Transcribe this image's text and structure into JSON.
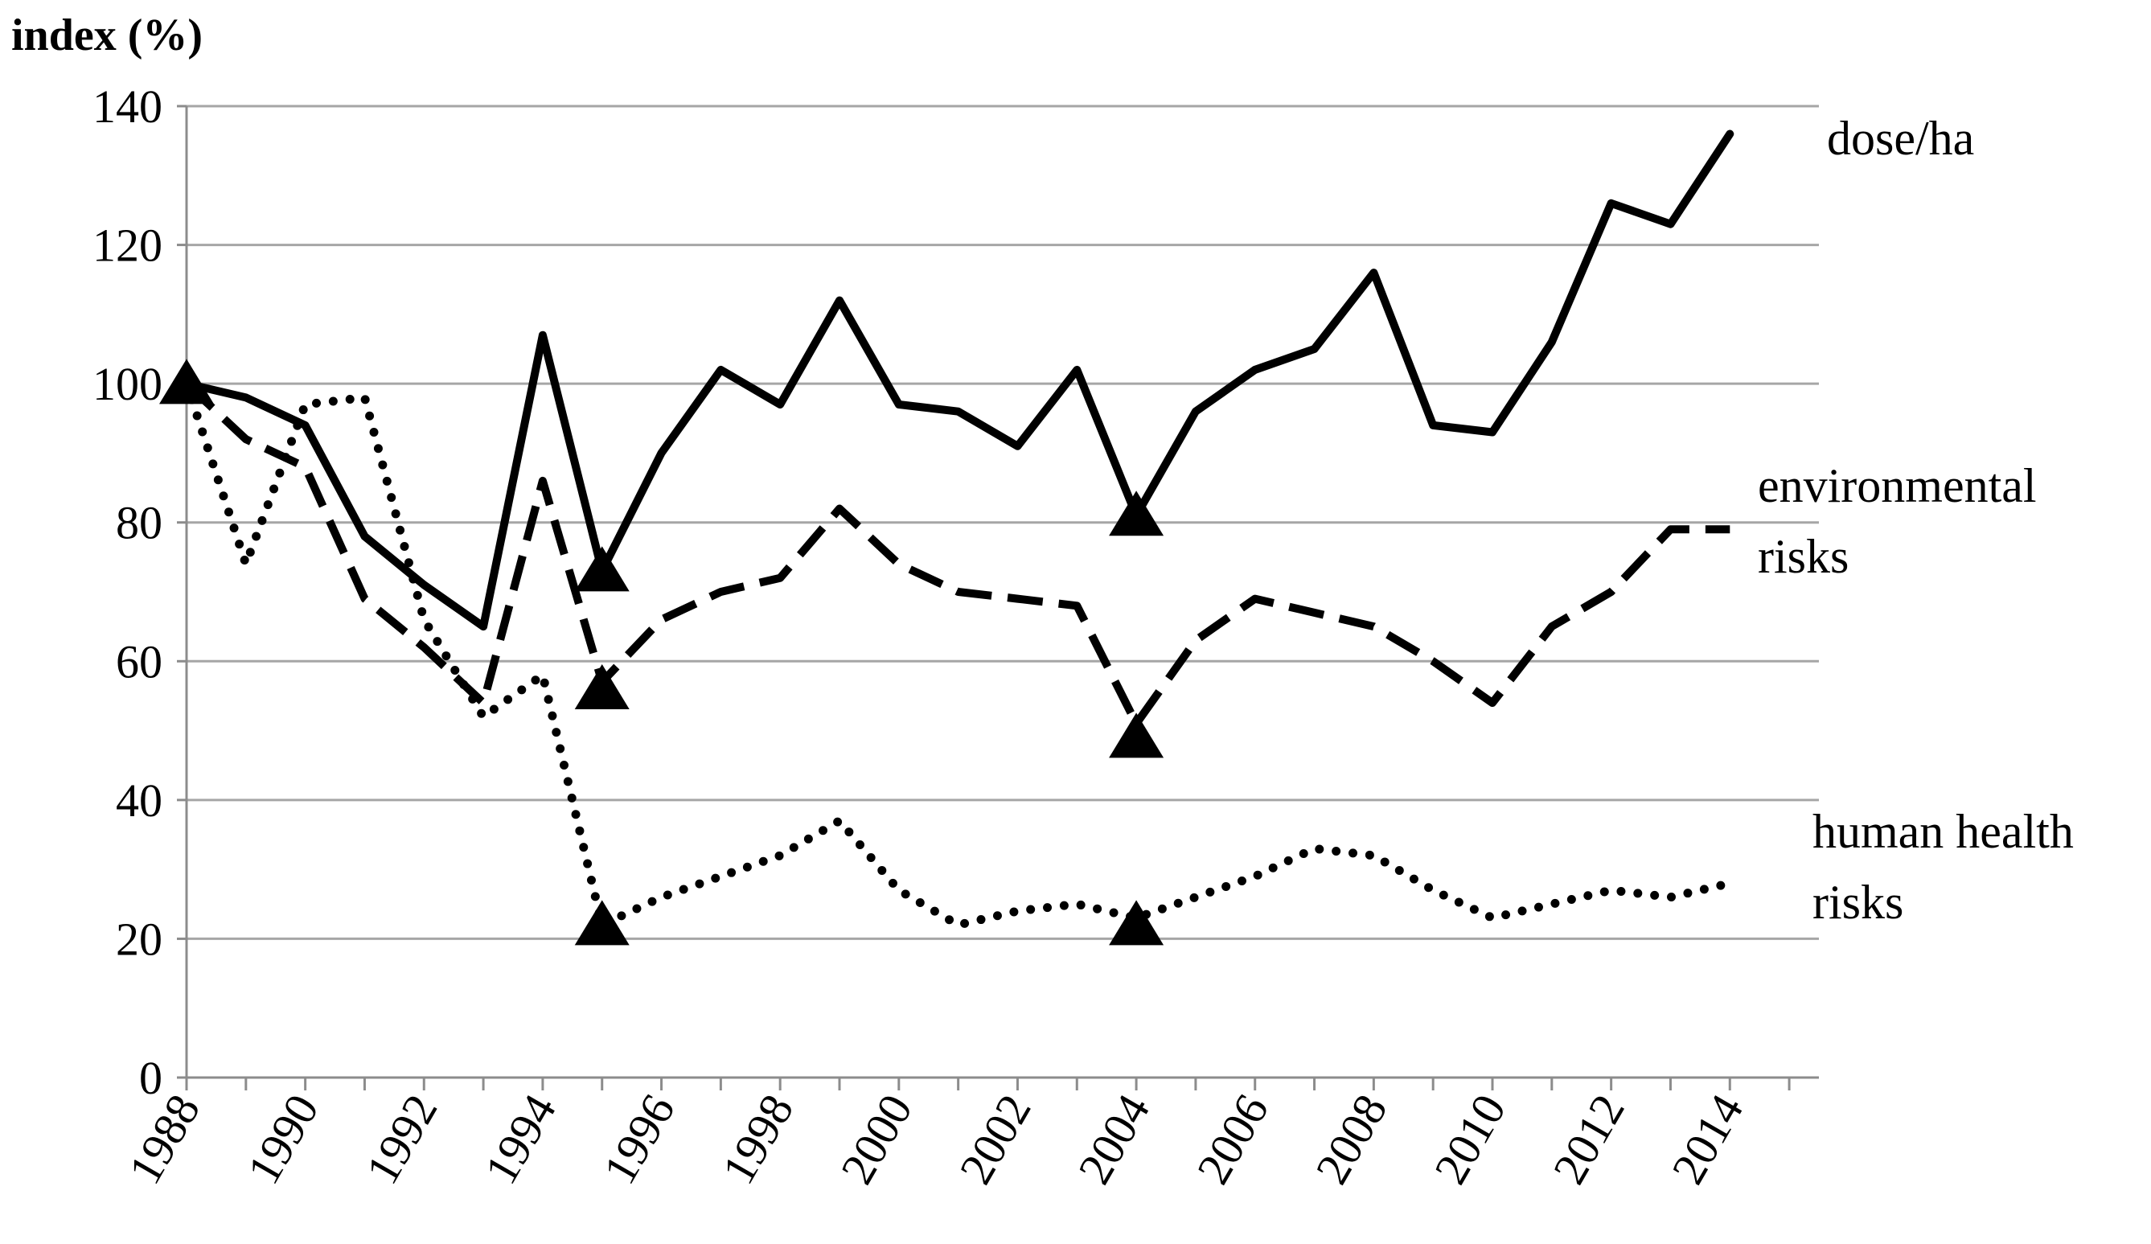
{
  "chart_data": {
    "type": "line",
    "ylabel": "index (%)",
    "xlabel": "",
    "ylim": [
      0,
      140
    ],
    "yticks": [
      "0",
      "20",
      "40",
      "60",
      "80",
      "100",
      "120",
      "140"
    ],
    "xlim": [
      1988,
      2015.5
    ],
    "x_tick_labels": [
      "1988",
      "1990",
      "1992",
      "1994",
      "1996",
      "1998",
      "2000",
      "2002",
      "2004",
      "2006",
      "2008",
      "2010",
      "2012",
      "2014"
    ],
    "grid": "horizontal",
    "series": [
      {
        "name": "dose/ha",
        "style": "solid",
        "x": [
          1988,
          1989,
          1990,
          1991,
          1992,
          1993,
          1994,
          1995,
          1996,
          1997,
          1998,
          1999,
          2000,
          2001,
          2002,
          2003,
          2004,
          2005,
          2006,
          2007,
          2008,
          2009,
          2010,
          2011,
          2012,
          2013,
          2014
        ],
        "values": [
          100,
          98,
          94,
          78,
          71,
          65,
          107,
          73,
          90,
          102,
          97,
          112,
          97,
          96,
          91,
          102,
          81,
          96,
          102,
          105,
          116,
          94,
          93,
          106,
          126,
          123,
          136
        ]
      },
      {
        "name": "environmental risks",
        "style": "dashed",
        "x": [
          1988,
          1989,
          1990,
          1991,
          1992,
          1993,
          1994,
          1995,
          1996,
          1997,
          1998,
          1999,
          2000,
          2001,
          2002,
          2003,
          2004,
          2005,
          2006,
          2007,
          2008,
          2009,
          2010,
          2011,
          2012,
          2013,
          2014
        ],
        "values": [
          100,
          92,
          88,
          69,
          62,
          54,
          86,
          57,
          66,
          70,
          72,
          82,
          74,
          70,
          69,
          68,
          51,
          63,
          69,
          67,
          65,
          60,
          54,
          65,
          70,
          79,
          79
        ]
      },
      {
        "name": "human health risks",
        "style": "dotted",
        "x": [
          1988,
          1989,
          1990,
          1991,
          1992,
          1993,
          1994,
          1995,
          1996,
          1997,
          1998,
          1999,
          2000,
          2001,
          2002,
          2003,
          2004,
          2005,
          2006,
          2007,
          2008,
          2009,
          2010,
          2011,
          2012,
          2013,
          2014
        ],
        "values": [
          100,
          74,
          97,
          98,
          66,
          52,
          58,
          22,
          26,
          29,
          32,
          37,
          27,
          22,
          24,
          25,
          23,
          26,
          29,
          33,
          32,
          27,
          23,
          25,
          27,
          26,
          28
        ]
      }
    ],
    "markers": [
      {
        "x": 1988,
        "y": 100
      },
      {
        "x": 1995,
        "y": 73
      },
      {
        "x": 1995,
        "y": 56
      },
      {
        "x": 1995,
        "y": 22
      },
      {
        "x": 2004,
        "y": 81
      },
      {
        "x": 2004,
        "y": 49
      },
      {
        "x": 2004,
        "y": 22
      }
    ],
    "series_labels": [
      {
        "lines": [
          "dose/ha"
        ],
        "series": "dose/ha"
      },
      {
        "lines": [
          "environmental",
          "risks"
        ],
        "series": "environmental risks"
      },
      {
        "lines": [
          "human health",
          "risks"
        ],
        "series": "human health risks"
      }
    ]
  }
}
